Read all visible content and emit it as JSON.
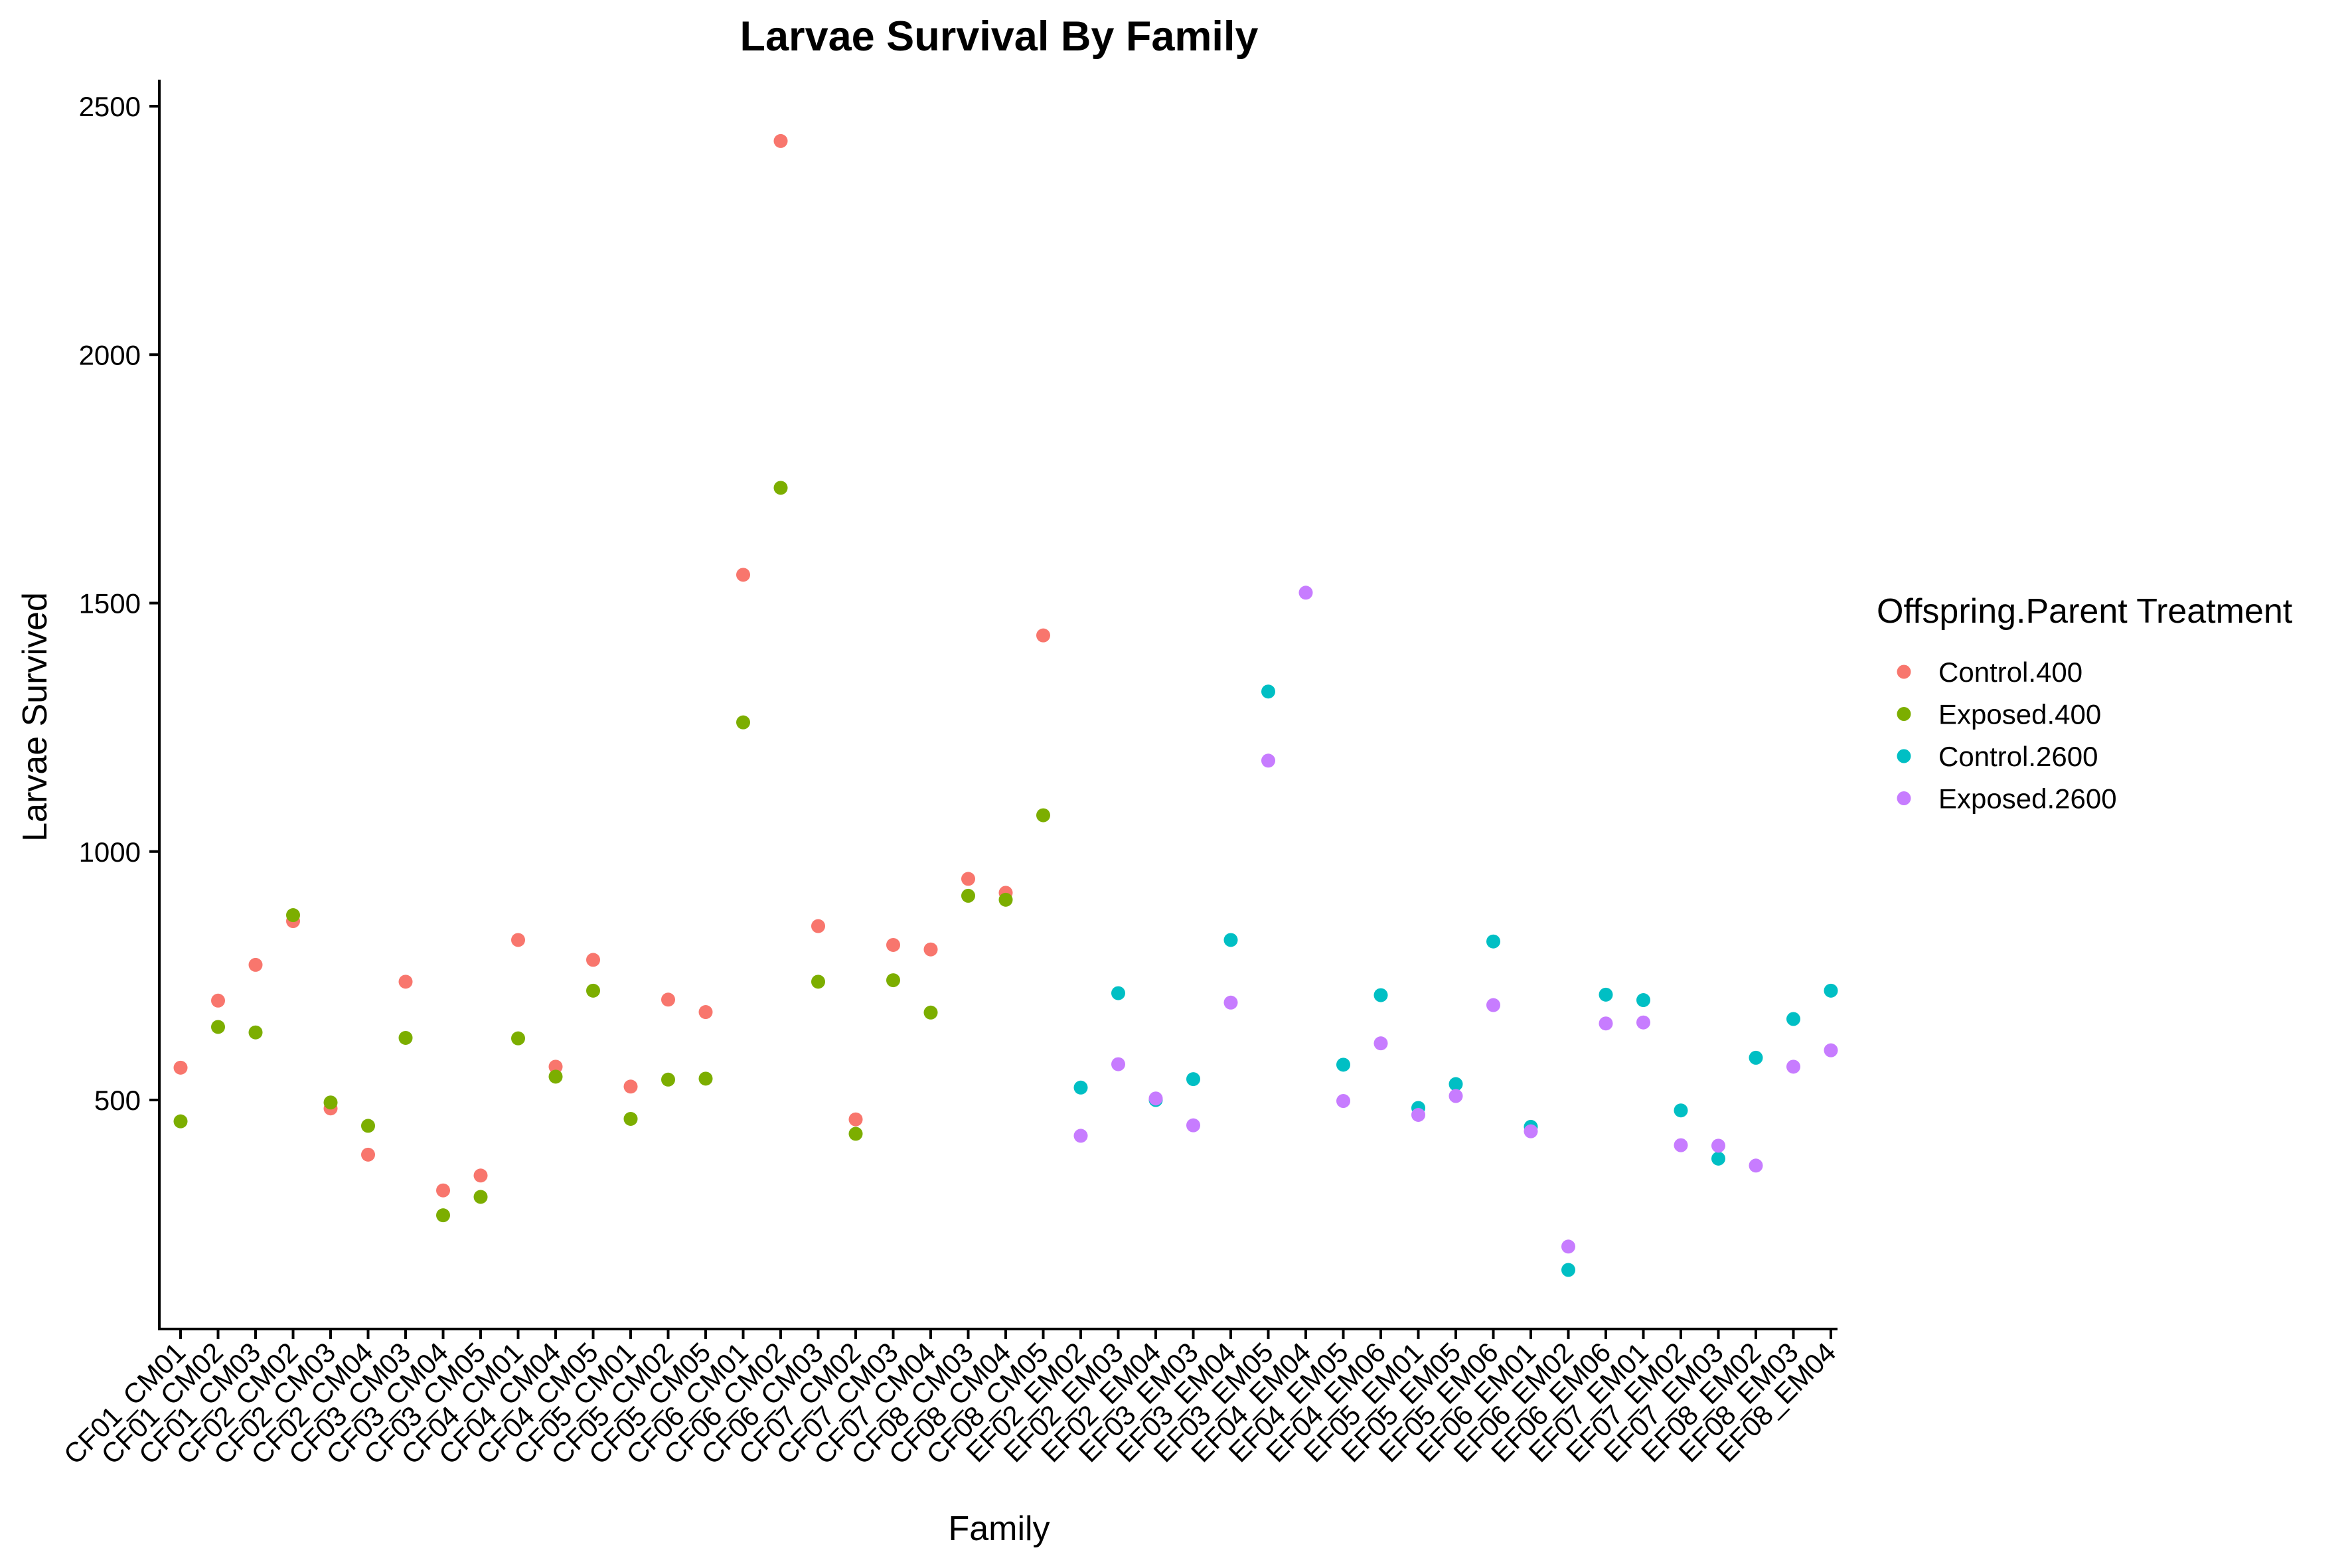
{
  "chart_data": {
    "type": "scatter",
    "title": "Larvae Survival By Family",
    "xlabel": "Family",
    "ylabel": "Larvae Survived",
    "ylim": [
      40,
      2550
    ],
    "yticks": [
      500,
      1000,
      1500,
      2000,
      2500
    ],
    "grid": false,
    "legend": {
      "title": "Offspring.Parent Treatment",
      "position": "right"
    },
    "categories": [
      "CF01_CM01",
      "CF01_CM02",
      "CF01_CM03",
      "CF02_CM02",
      "CF02_CM03",
      "CF02_CM04",
      "CF03_CM03",
      "CF03_CM04",
      "CF03_CM05",
      "CF04_CM01",
      "CF04_CM04",
      "CF04_CM05",
      "CF05_CM01",
      "CF05_CM02",
      "CF05_CM05",
      "CF06_CM01",
      "CF06_CM02",
      "CF06_CM03",
      "CF07_CM02",
      "CF07_CM03",
      "CF07_CM04",
      "CF08_CM03",
      "CF08_CM04",
      "CF08_CM05",
      "EF02_EM02",
      "EF02_EM03",
      "EF02_EM04",
      "EF03_EM03",
      "EF03_EM04",
      "EF03_EM05",
      "EF04_EM04",
      "EF04_EM05",
      "EF04_EM06",
      "EF05_EM01",
      "EF05_EM05",
      "EF05_EM06",
      "EF06_EM01",
      "EF06_EM02",
      "EF06_EM06",
      "EF07_EM01",
      "EF07_EM02",
      "EF07_EM03",
      "EF08_EM02",
      "EF08_EM03",
      "EF08_EM04"
    ],
    "series": [
      {
        "name": "Control.400",
        "color": "#F8766D",
        "points": [
          [
            0,
            565
          ],
          [
            1,
            700
          ],
          [
            2,
            772
          ],
          [
            3,
            860
          ],
          [
            4,
            483
          ],
          [
            5,
            390
          ],
          [
            6,
            738
          ],
          [
            7,
            318
          ],
          [
            8,
            348
          ],
          [
            9,
            822
          ],
          [
            10,
            567
          ],
          [
            11,
            782
          ],
          [
            12,
            527
          ],
          [
            13,
            702
          ],
          [
            14,
            677
          ],
          [
            15,
            1557
          ],
          [
            16,
            2430
          ],
          [
            17,
            850
          ],
          [
            18,
            461
          ],
          [
            19,
            812
          ],
          [
            20,
            803
          ],
          [
            21,
            945
          ],
          [
            22,
            917
          ],
          [
            23,
            1435
          ]
        ]
      },
      {
        "name": "Exposed.400",
        "color": "#7CAE00",
        "points": [
          [
            0,
            457
          ],
          [
            1,
            647
          ],
          [
            2,
            636
          ],
          [
            3,
            872
          ],
          [
            4,
            495
          ],
          [
            5,
            448
          ],
          [
            6,
            625
          ],
          [
            7,
            268
          ],
          [
            8,
            305
          ],
          [
            9,
            624
          ],
          [
            10,
            547
          ],
          [
            11,
            720
          ],
          [
            12,
            462
          ],
          [
            13,
            541
          ],
          [
            14,
            543
          ],
          [
            15,
            1260
          ],
          [
            16,
            1732
          ],
          [
            17,
            738
          ],
          [
            18,
            432
          ],
          [
            19,
            741
          ],
          [
            20,
            676
          ],
          [
            21,
            911
          ],
          [
            22,
            903
          ],
          [
            23,
            1073
          ]
        ]
      },
      {
        "name": "Control.2600",
        "color": "#00BFC4",
        "points": [
          [
            24,
            525
          ],
          [
            25,
            715
          ],
          [
            26,
            500
          ],
          [
            27,
            542
          ],
          [
            28,
            822
          ],
          [
            29,
            1322
          ],
          [
            31,
            571
          ],
          [
            32,
            711
          ],
          [
            33,
            484
          ],
          [
            34,
            532
          ],
          [
            35,
            819
          ],
          [
            36,
            446
          ],
          [
            37,
            158
          ],
          [
            38,
            712
          ],
          [
            39,
            701
          ],
          [
            40,
            479
          ],
          [
            41,
            382
          ],
          [
            42,
            585
          ],
          [
            43,
            663
          ],
          [
            44,
            720
          ]
        ]
      },
      {
        "name": "Exposed.2600",
        "color": "#C77CFF",
        "points": [
          [
            24,
            428
          ],
          [
            25,
            572
          ],
          [
            26,
            503
          ],
          [
            27,
            449
          ],
          [
            28,
            696
          ],
          [
            29,
            1183
          ],
          [
            30,
            1521
          ],
          [
            31,
            498
          ],
          [
            32,
            614
          ],
          [
            33,
            470
          ],
          [
            34,
            508
          ],
          [
            35,
            691
          ],
          [
            36,
            437
          ],
          [
            37,
            205
          ],
          [
            38,
            654
          ],
          [
            39,
            656
          ],
          [
            40,
            409
          ],
          [
            41,
            408
          ],
          [
            42,
            368
          ],
          [
            43,
            567
          ],
          [
            44,
            600
          ]
        ]
      }
    ]
  }
}
